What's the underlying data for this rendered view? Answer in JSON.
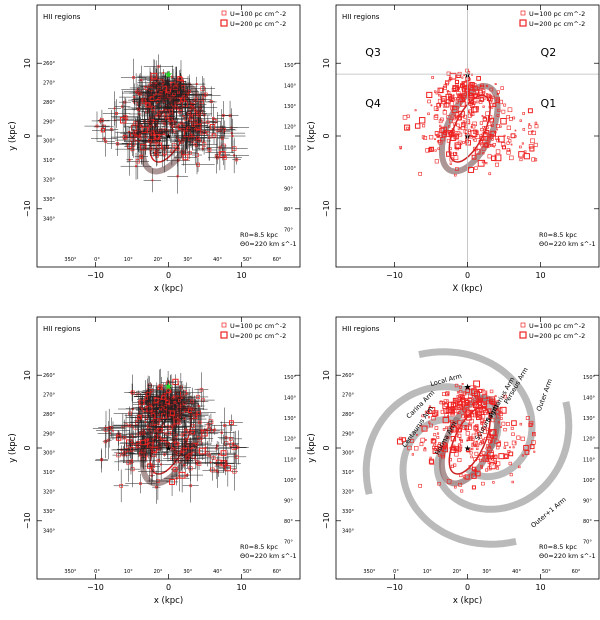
{
  "figure": {
    "sun_marker_color": "#22dd22",
    "point_color": "#ee2222",
    "errorbar_color": "#222222",
    "arm_color": "#b3b3b3"
  },
  "chart_data": [
    {
      "type": "scatter",
      "id": "panel-top-left",
      "title": "HII regions",
      "xlabel": "x (kpc)",
      "ylabel": "y (kpc)",
      "xlim": [
        -18,
        18
      ],
      "ylim": [
        -18,
        18
      ],
      "xticks": [
        -10,
        0,
        10
      ],
      "yticks": [
        -10,
        0,
        10
      ],
      "legend": {
        "placement": "top-right",
        "entries": [
          "U=100 pc cm^-2",
          "U=200 pc cm^-2"
        ]
      },
      "annotations": [
        "R0=8.5 kpc",
        "Θ0=220 km s^-1"
      ],
      "longitude_labels": [
        "260°",
        "270°",
        "280°",
        "290°",
        "300°",
        "310°",
        "320°",
        "330°",
        "340°",
        "350°",
        "0°",
        "10°",
        "20°",
        "30°",
        "40°",
        "50°",
        "60°",
        "70°",
        "80°",
        "90°",
        "100°",
        "110°",
        "120°",
        "130°",
        "140°",
        "150°"
      ],
      "error_bars": true,
      "quadrant_labels": [],
      "arm_labels": []
    },
    {
      "type": "scatter",
      "id": "panel-top-right",
      "title": "HII regions",
      "xlabel": "X (kpc)",
      "ylabel": "Y (kpc)",
      "xlim": [
        -18,
        18
      ],
      "ylim": [
        -18,
        18
      ],
      "xticks": [
        -10,
        0,
        10
      ],
      "yticks": [
        -10,
        0,
        10
      ],
      "legend": {
        "placement": "top-right",
        "entries": [
          "U=100 pc cm^-2",
          "U=200 pc cm^-2"
        ]
      },
      "annotations": [
        "R0=8.5 kpc",
        "Θ0=220 km s^-1"
      ],
      "longitude_labels": [],
      "error_bars": false,
      "quadrant_labels": [
        "Q3",
        "Q2",
        "Q4",
        "Q1"
      ],
      "arm_labels": []
    },
    {
      "type": "scatter",
      "id": "panel-bottom-left",
      "title": "HII regions",
      "xlabel": "x (kpc)",
      "ylabel": "y (kpc)",
      "xlim": [
        -18,
        18
      ],
      "ylim": [
        -18,
        18
      ],
      "xticks": [
        -10,
        0,
        10
      ],
      "yticks": [
        -10,
        0,
        10
      ],
      "legend": {
        "placement": "top-right",
        "entries": [
          "U=100 pc cm^-2",
          "U=200 pc cm^-2"
        ]
      },
      "annotations": [
        "R0=8.5 kpc",
        "Θ0=220 km s^-1"
      ],
      "longitude_labels": [
        "260°",
        "270°",
        "280°",
        "290°",
        "300°",
        "310°",
        "320°",
        "330°",
        "340°",
        "350°",
        "0°",
        "10°",
        "20°",
        "30°",
        "40°",
        "50°",
        "60°",
        "70°",
        "80°",
        "90°",
        "100°",
        "110°",
        "120°",
        "130°",
        "140°",
        "150°"
      ],
      "error_bars": true,
      "quadrant_labels": [],
      "arm_labels": []
    },
    {
      "type": "scatter",
      "id": "panel-bottom-right",
      "title": "HII regions",
      "xlabel": "x (kpc)",
      "ylabel": "y (kpc)",
      "xlim": [
        -18,
        18
      ],
      "ylim": [
        -18,
        18
      ],
      "xticks": [
        -10,
        0,
        10
      ],
      "yticks": [
        -10,
        0,
        10
      ],
      "legend": {
        "placement": "top-right",
        "entries": [
          "U=100 pc cm^-2",
          "U=200 pc cm^-2"
        ]
      },
      "annotations": [
        "R0=8.5 kpc",
        "Θ0=220 km s^-1"
      ],
      "longitude_labels": [
        "260°",
        "270°",
        "280°",
        "290°",
        "300°",
        "310°",
        "320°",
        "330°",
        "340°",
        "350°",
        "0°",
        "10°",
        "20°",
        "30°",
        "40°",
        "50°",
        "60°",
        "70°",
        "80°",
        "90°",
        "100°",
        "110°",
        "120°",
        "130°",
        "140°",
        "150°"
      ],
      "error_bars": false,
      "quadrant_labels": [],
      "arm_labels": [
        "Local Arm",
        "Carina Arm",
        "Centaurus Arm",
        "Norma Arm",
        "Scutum Arm",
        "Sagittarius Arm",
        "Perseus Arm",
        "Outer Arm",
        "Outer+1 Arm"
      ]
    }
  ]
}
